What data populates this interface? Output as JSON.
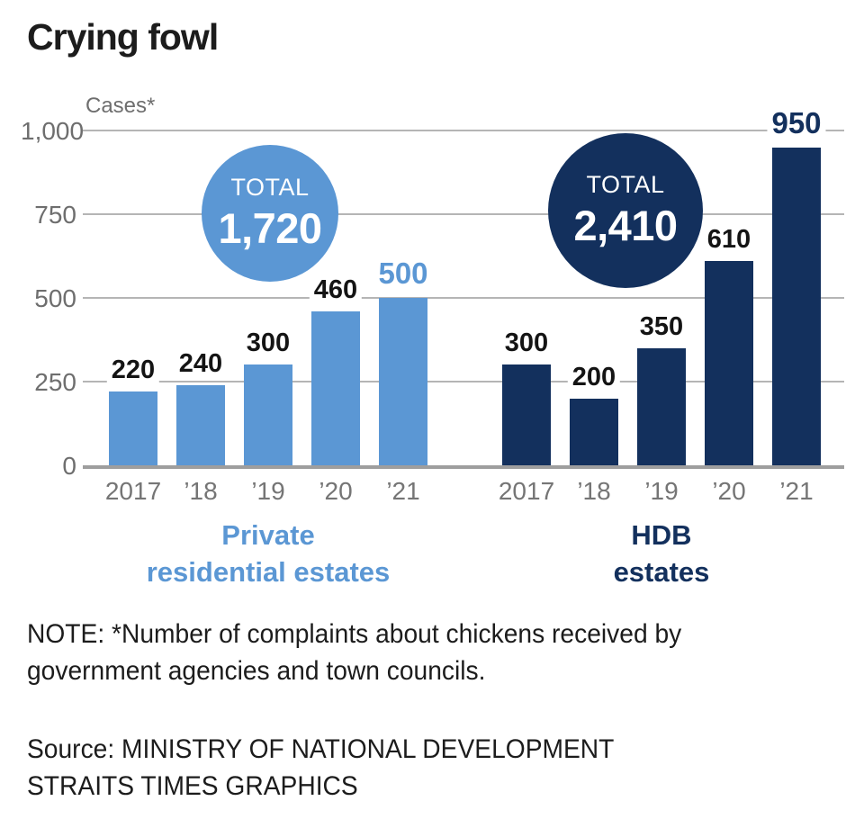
{
  "title": "Crying fowl",
  "axis": {
    "unit_label": "Cases*",
    "yticks": [
      {
        "label": "1,000",
        "value": 1000
      },
      {
        "label": "750",
        "value": 750
      },
      {
        "label": "500",
        "value": 500
      },
      {
        "label": "250",
        "value": 250
      },
      {
        "label": "0",
        "value": 0
      }
    ]
  },
  "chart_data": {
    "type": "bar",
    "categories": [
      "2017",
      "’18",
      "’19",
      "’20",
      "’21"
    ],
    "series": [
      {
        "name": "Private residential estates",
        "label_line1": "Private",
        "label_line2": "residential estates",
        "color": "#5b97d4",
        "values": [
          220,
          240,
          300,
          460,
          500
        ],
        "value_labels": [
          "220",
          "240",
          "300",
          "460",
          "500"
        ],
        "total_caption": "TOTAL",
        "total": "1,720"
      },
      {
        "name": "HDB estates",
        "label_line1": "HDB",
        "label_line2": "estates",
        "color": "#13305d",
        "values": [
          300,
          200,
          350,
          610,
          950
        ],
        "value_labels": [
          "300",
          "200",
          "350",
          "610",
          "950"
        ],
        "total_caption": "TOTAL",
        "total": "2,410"
      }
    ],
    "ylim": [
      0,
      1000
    ],
    "grid": true,
    "highlight_last_bar": true,
    "title": "Crying fowl",
    "ylabel": "Cases*"
  },
  "note": {
    "line1": "NOTE: *Number of complaints about chickens received by",
    "line2": "government agencies and town councils."
  },
  "source": {
    "line1": "Source: MINISTRY OF NATIONAL DEVELOPMENT",
    "line2": "STRAITS TIMES GRAPHICS"
  },
  "colors": {
    "private_blue": "#5b97d4",
    "hdb_navy": "#13305d",
    "text_dark": "#1c1c1c",
    "text_gray": "#6e6e6e",
    "gridline": "#b5b5b5",
    "baseline": "#9e9e9e",
    "background": "#ffffff"
  }
}
